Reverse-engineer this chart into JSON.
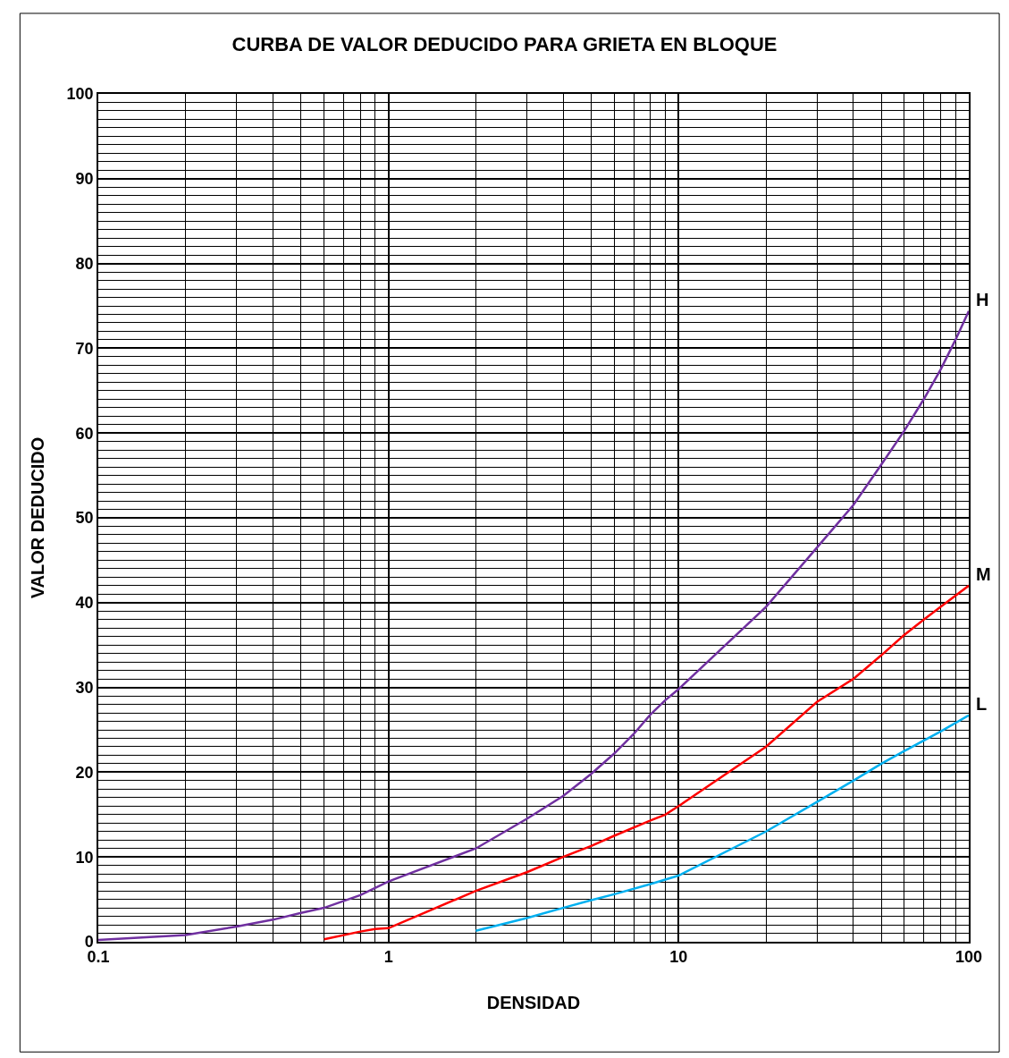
{
  "chart_data": {
    "type": "line",
    "title": "CURBA DE VALOR DEDUCIDO PARA GRIETA EN BLOQUE",
    "xlabel": "DENSIDAD",
    "ylabel": "VALOR DEDUCIDO",
    "log": "x",
    "xlim": [
      0.1,
      100
    ],
    "xticks": [
      0.1,
      1,
      10,
      100
    ],
    "ylim": [
      0,
      100
    ],
    "yticks": [
      0,
      10,
      20,
      30,
      40,
      50,
      60,
      70,
      80,
      90,
      100
    ],
    "grid": true,
    "legend": false,
    "marker": "none",
    "line_style": "solid",
    "series": [
      {
        "name": "H",
        "color": "#7030a0",
        "x": [
          0.1,
          0.2,
          0.3,
          0.4,
          0.5,
          0.6,
          0.8,
          1,
          2,
          3,
          4,
          5,
          6,
          7,
          8,
          9,
          10,
          20,
          30,
          40,
          50,
          60,
          70,
          80,
          90,
          100
        ],
        "values": [
          0.2,
          0.8,
          1.8,
          2.6,
          3.4,
          4.0,
          5.5,
          7.1,
          11,
          14.5,
          17.2,
          19.8,
          22.2,
          24.5,
          26.8,
          28.5,
          29.8,
          39.5,
          46.5,
          51.5,
          56.3,
          60.3,
          64,
          67.5,
          71,
          74.4
        ]
      },
      {
        "name": "M",
        "color": "#ff0000",
        "x": [
          0.6,
          0.8,
          0.9,
          1,
          2,
          3,
          4,
          5,
          6,
          8,
          9,
          10,
          20,
          30,
          40,
          50,
          60,
          70,
          80,
          100
        ],
        "values": [
          0.3,
          1.2,
          1.5,
          1.6,
          6,
          8.2,
          10,
          11.3,
          12.5,
          14.3,
          15,
          16,
          23,
          28.3,
          31,
          33.8,
          36.2,
          38,
          39.5,
          42
        ]
      },
      {
        "name": "L",
        "color": "#00b0f0",
        "x": [
          2,
          3,
          4,
          5,
          6,
          8,
          10,
          20,
          30,
          40,
          50,
          60,
          80,
          100
        ],
        "values": [
          1.3,
          2.8,
          4,
          4.9,
          5.6,
          6.8,
          7.8,
          13,
          16.5,
          19,
          21,
          22.5,
          24.8,
          26.7
        ]
      }
    ]
  }
}
